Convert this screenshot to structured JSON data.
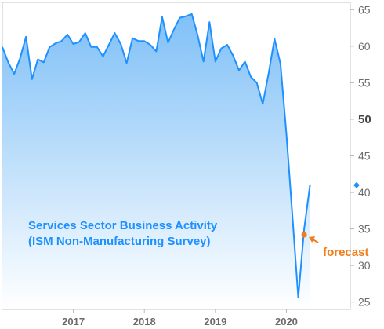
{
  "chart_data": {
    "type": "area",
    "title_lines": [
      "Services Sector Business Activity",
      "(ISM Non-Manufacturing Survey)"
    ],
    "xlabel": "",
    "ylabel": "",
    "x_ticks": [
      "2017",
      "2018",
      "2019",
      "2020"
    ],
    "y_ticks": [
      "25",
      "30",
      "35",
      "40",
      "45",
      "50",
      "55",
      "60",
      "65"
    ],
    "ylim": [
      24,
      66
    ],
    "xlim": [
      2016.0,
      2020.9
    ],
    "grid": false,
    "series": [
      {
        "values": [
          {
            "x": 2016.0,
            "y": 59.9
          },
          {
            "x": 2016.083,
            "y": 57.8
          },
          {
            "x": 2016.167,
            "y": 56.2
          },
          {
            "x": 2016.25,
            "y": 58.4
          },
          {
            "x": 2016.333,
            "y": 61.3
          },
          {
            "x": 2016.417,
            "y": 55.5
          },
          {
            "x": 2016.5,
            "y": 58.2
          },
          {
            "x": 2016.583,
            "y": 57.8
          },
          {
            "x": 2016.667,
            "y": 59.9
          },
          {
            "x": 2016.75,
            "y": 60.4
          },
          {
            "x": 2016.833,
            "y": 60.7
          },
          {
            "x": 2016.917,
            "y": 61.6
          },
          {
            "x": 2017.0,
            "y": 60.3
          },
          {
            "x": 2017.083,
            "y": 60.6
          },
          {
            "x": 2017.167,
            "y": 61.8
          },
          {
            "x": 2017.25,
            "y": 59.9
          },
          {
            "x": 2017.333,
            "y": 59.9
          },
          {
            "x": 2017.417,
            "y": 58.6
          },
          {
            "x": 2017.5,
            "y": 60.2
          },
          {
            "x": 2017.583,
            "y": 61.8
          },
          {
            "x": 2017.667,
            "y": 60.3
          },
          {
            "x": 2017.75,
            "y": 57.7
          },
          {
            "x": 2017.833,
            "y": 61.1
          },
          {
            "x": 2017.917,
            "y": 60.7
          },
          {
            "x": 2018.0,
            "y": 60.7
          },
          {
            "x": 2018.083,
            "y": 60.2
          },
          {
            "x": 2018.167,
            "y": 59.3
          },
          {
            "x": 2018.25,
            "y": 64.0
          },
          {
            "x": 2018.333,
            "y": 60.5
          },
          {
            "x": 2018.417,
            "y": 62.3
          },
          {
            "x": 2018.5,
            "y": 63.9
          },
          {
            "x": 2018.583,
            "y": 64.1
          },
          {
            "x": 2018.667,
            "y": 64.4
          },
          {
            "x": 2018.75,
            "y": 61.5
          },
          {
            "x": 2018.833,
            "y": 57.9
          },
          {
            "x": 2018.917,
            "y": 63.3
          },
          {
            "x": 2019.0,
            "y": 57.9
          },
          {
            "x": 2019.083,
            "y": 59.7
          },
          {
            "x": 2019.167,
            "y": 60.2
          },
          {
            "x": 2019.25,
            "y": 58.7
          },
          {
            "x": 2019.333,
            "y": 56.7
          },
          {
            "x": 2019.417,
            "y": 57.9
          },
          {
            "x": 2019.5,
            "y": 55.8
          },
          {
            "x": 2019.583,
            "y": 55.0
          },
          {
            "x": 2019.667,
            "y": 52.1
          },
          {
            "x": 2019.75,
            "y": 56.3
          },
          {
            "x": 2019.833,
            "y": 61.0
          },
          {
            "x": 2019.917,
            "y": 57.6
          },
          {
            "x": 2020.0,
            "y": 48.1
          },
          {
            "x": 2020.083,
            "y": 37.0
          },
          {
            "x": 2020.167,
            "y": 25.6
          },
          {
            "x": 2020.25,
            "y": 35.0
          },
          {
            "x": 2020.333,
            "y": 41.0
          }
        ],
        "color": "#1e90ff"
      }
    ],
    "current_marker": {
      "y": 41.0,
      "color": "#1e90ff"
    },
    "forecast": {
      "label": "forecast",
      "x": 2020.25,
      "y": 34.2,
      "color": "#f07d1d"
    },
    "colors": {
      "line": "#1e90ff",
      "fill_top": "#7fc0f7",
      "fill_bottom": "#ffffff",
      "title": "#1e90ff",
      "axis": "#b8b8b8"
    }
  }
}
